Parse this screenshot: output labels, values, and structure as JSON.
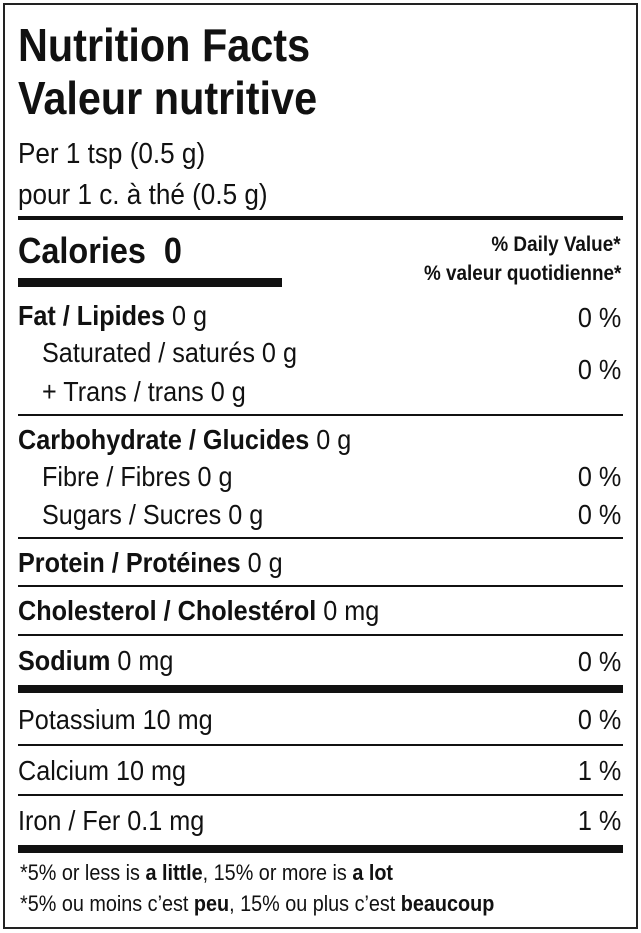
{
  "title_en": "Nutrition Facts",
  "title_fr": "Valeur nutritive",
  "serving_en": "Per 1 tsp (0.5 g)",
  "serving_fr": "pour 1 c. à thé (0.5 g)",
  "calories": {
    "label": "Calories",
    "value": "0"
  },
  "dv_header_en": "% Daily Value*",
  "dv_header_fr": "% valeur quotidienne*",
  "nutrients": {
    "fat": {
      "label": "Fat / Lipides",
      "amount": "0 g",
      "dv": "0 %"
    },
    "saturated": {
      "label": "Saturated / saturés",
      "amount": "0 g"
    },
    "trans": {
      "label": "+ Trans / trans",
      "amount": "0 g"
    },
    "sat_trans_dv": "0 %",
    "carbohydrate": {
      "label": "Carbohydrate / Glucides",
      "amount": "0 g"
    },
    "fibre": {
      "label": "Fibre / Fibres",
      "amount": "0 g",
      "dv": "0 %"
    },
    "sugars": {
      "label": "Sugars / Sucres",
      "amount": "0 g",
      "dv": "0 %"
    },
    "protein": {
      "label": "Protein / Protéines",
      "amount": "0 g"
    },
    "cholesterol": {
      "label": "Cholesterol / Cholestérol",
      "amount": "0 mg"
    },
    "sodium": {
      "label": "Sodium",
      "amount": "0 mg",
      "dv": "0 %"
    },
    "potassium": {
      "label": "Potassium",
      "amount": "10 mg",
      "dv": "0 %"
    },
    "calcium": {
      "label": "Calcium",
      "amount": "10 mg",
      "dv": "1 %"
    },
    "iron": {
      "label": "Iron / Fer",
      "amount": "0.1 mg",
      "dv": "1 %"
    }
  },
  "footnote_en": {
    "a": "*5% or less is ",
    "b": "a little",
    "c": ", 15% or more is ",
    "d": "a lot"
  },
  "footnote_fr": {
    "a": "*5% ou moins c’est ",
    "b": "peu",
    "c": ", 15% ou plus c’est ",
    "d": "beaucoup"
  }
}
